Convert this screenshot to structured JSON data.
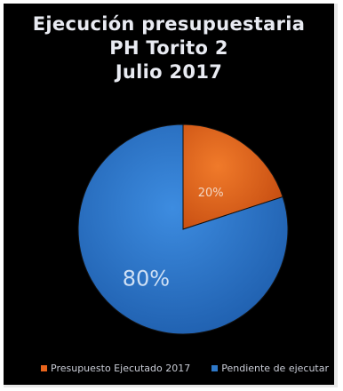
{
  "chart_data": {
    "type": "pie",
    "title_lines": [
      "Ejecución presupuestaria",
      "PH Torito 2",
      "Julio 2017"
    ],
    "slices": [
      {
        "label": "Presupuesto Ejecutado 2017",
        "value": 20,
        "data_label": "20%",
        "color": "#e8641c"
      },
      {
        "label": "Pendiente de ejecutar",
        "value": 80,
        "data_label": "80%",
        "color": "#2e78c8"
      }
    ],
    "legend_position": "bottom",
    "background": "#000000"
  }
}
